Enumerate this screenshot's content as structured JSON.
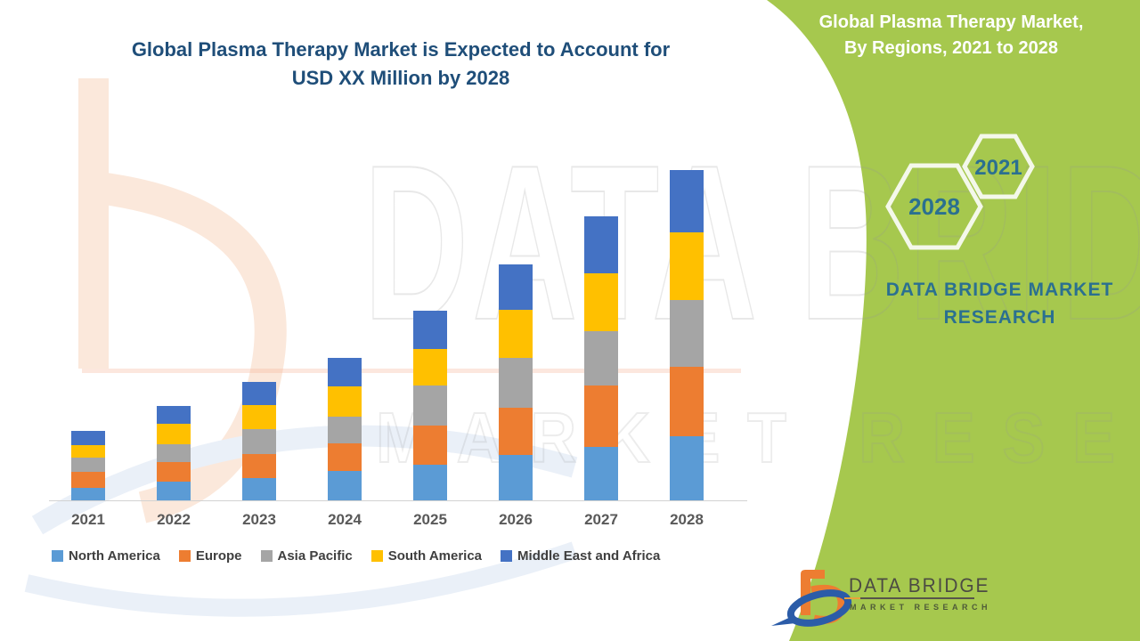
{
  "title": {
    "line1": "Global Plasma Therapy Market is Expected to Account for",
    "line2": "USD XX Million by 2028",
    "color": "#1F4E79"
  },
  "side_panel": {
    "bg_color": "#A6C84E",
    "title_line1": "Global Plasma Therapy Market,",
    "title_line2": "By Regions, 2021 to 2028",
    "hexagon_year_small": "2021",
    "hexagon_year_big": "2028",
    "brand_line1": "DATA BRIDGE MARKET",
    "brand_line2": "RESEARCH",
    "brand_text_color": "#2B7090"
  },
  "footer_logo": {
    "name": "DATA BRIDGE",
    "subtitle": "MARKET RESEARCH"
  },
  "watermark": {
    "big_text": "DATA BRIDGE",
    "small_text": "MARKET RESEARCH"
  },
  "chart_data": {
    "type": "bar",
    "stacked": true,
    "title": "Global Plasma Therapy Market is Expected to Account for USD XX Million by 2028",
    "xlabel": "",
    "ylabel": "",
    "units": "USD XX Million (placeholder values, relative scale)",
    "grid": false,
    "legend_position": "bottom",
    "axis_line_color": "#D2D2D2",
    "categories": [
      "2021",
      "2022",
      "2023",
      "2024",
      "2025",
      "2026",
      "2027",
      "2028"
    ],
    "series": [
      {
        "name": "North America",
        "color": "#5B9BD5",
        "values": [
          14,
          21,
          25,
          33,
          40,
          51,
          60,
          72
        ]
      },
      {
        "name": "Europe",
        "color": "#ED7D31",
        "values": [
          18,
          22,
          27,
          31,
          44,
          53,
          69,
          78
        ]
      },
      {
        "name": "Asia Pacific",
        "color": "#A5A5A5",
        "values": [
          16,
          20,
          28,
          30,
          45,
          56,
          61,
          75
        ]
      },
      {
        "name": "South America",
        "color": "#FFC000",
        "values": [
          14,
          23,
          27,
          34,
          41,
          54,
          65,
          76
        ]
      },
      {
        "name": "Middle East and Africa",
        "color": "#4472C4",
        "values": [
          16,
          20,
          26,
          32,
          43,
          51,
          64,
          70
        ]
      }
    ],
    "totals": [
      78,
      106,
      133,
      160,
      213,
      265,
      319,
      371
    ]
  }
}
